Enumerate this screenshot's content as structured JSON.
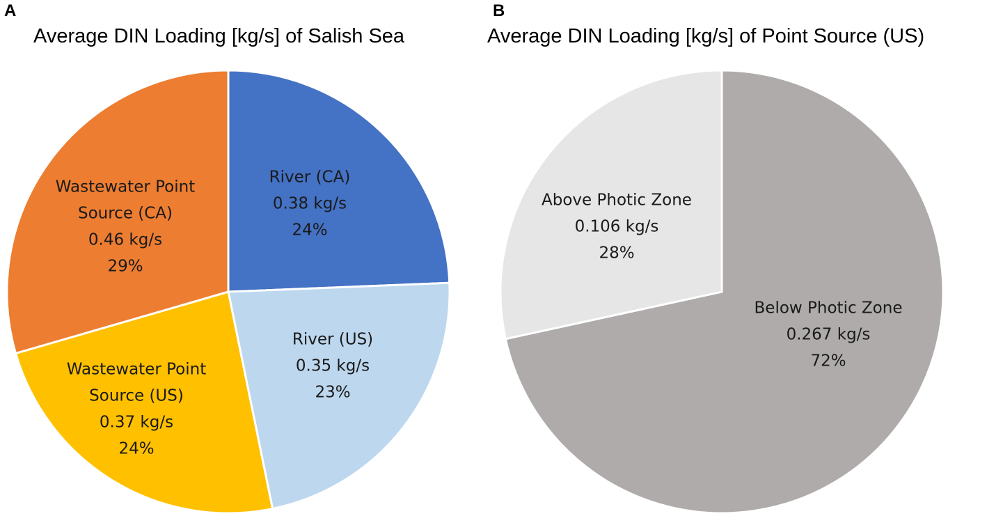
{
  "chart_data": [
    {
      "type": "pie",
      "panel": "A",
      "title": "Average DIN Loading [kg/s] of Salish Sea",
      "slices": [
        {
          "name": "River (CA)",
          "value": 0.38,
          "value_label": "0.38 kg/s",
          "percent_label": "24%",
          "color": "#4472C4",
          "label_lines": [
            "River (CA)"
          ]
        },
        {
          "name": "River (US)",
          "value": 0.35,
          "value_label": "0.35 kg/s",
          "percent_label": "23%",
          "color": "#BDD7EE",
          "label_lines": [
            "River (US)"
          ]
        },
        {
          "name": "Wastewater Point Source (US)",
          "value": 0.37,
          "value_label": "0.37 kg/s",
          "percent_label": "24%",
          "color": "#FFC000",
          "label_lines": [
            "Wastewater Point",
            "Source (US)"
          ]
        },
        {
          "name": "Wastewater Point Source (CA)",
          "value": 0.46,
          "value_label": "0.46 kg/s",
          "percent_label": "29%",
          "color": "#ED7D31",
          "label_lines": [
            "Wastewater Point",
            "Source (CA)"
          ]
        }
      ]
    },
    {
      "type": "pie",
      "panel": "B",
      "title": "Average DIN Loading [kg/s] of Point Source (US)",
      "slices": [
        {
          "name": "Below Photic Zone",
          "value": 0.267,
          "value_label": "0.267 kg/s",
          "percent_label": "72%",
          "color": "#AFABAB",
          "label_lines": [
            "Below Photic Zone"
          ]
        },
        {
          "name": "Above Photic Zone",
          "value": 0.106,
          "value_label": "0.106 kg/s",
          "percent_label": "28%",
          "color": "#E7E6E6",
          "label_lines": [
            "Above Photic Zone"
          ]
        }
      ]
    }
  ]
}
